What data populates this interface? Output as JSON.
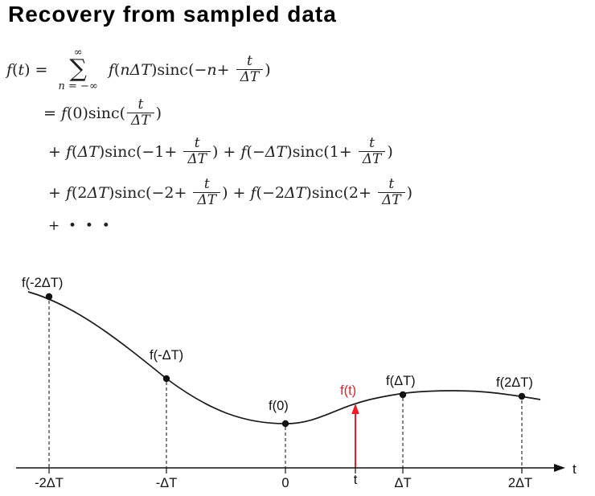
{
  "title": "Recovery from sampled data",
  "colors": {
    "highlight_red": "#ed1c24",
    "ink": "#111111"
  },
  "equations": {
    "lines": [
      {
        "plain": "f(t) = Σ_{n=−∞}^{∞} f(nΔT) sinc(−n + t/ΔT)",
        "tokens": [
          {
            "k": "var",
            "v": "f"
          },
          {
            "k": "txt",
            "v": "("
          },
          {
            "k": "var",
            "v": "t"
          },
          {
            "k": "txt",
            "v": ") = "
          },
          {
            "k": "sum",
            "top": "∞",
            "bot": "n = −∞"
          },
          {
            "k": "txt",
            "v": " "
          },
          {
            "k": "var",
            "v": "f"
          },
          {
            "k": "txt",
            "v": "("
          },
          {
            "k": "var",
            "v": "nΔT"
          },
          {
            "k": "txt",
            "v": ")sinc(−"
          },
          {
            "k": "var",
            "v": "n"
          },
          {
            "k": "txt",
            "v": "+ "
          },
          {
            "k": "frac",
            "num": "t",
            "den": "ΔT"
          },
          {
            "k": "txt",
            "v": ")"
          }
        ]
      },
      {
        "plain": "= f(0) sinc(t/ΔT)",
        "tokens": [
          {
            "k": "txt",
            "v": "= "
          },
          {
            "k": "var",
            "v": "f"
          },
          {
            "k": "txt",
            "v": "(0)sinc("
          },
          {
            "k": "frac",
            "num": "t",
            "den": "ΔT"
          },
          {
            "k": "txt",
            "v": ")"
          }
        ]
      },
      {
        "plain": "+ f(ΔT) sinc(−1 + t/ΔT) + f(−ΔT) sinc(1 + t/ΔT)",
        "tokens": [
          {
            "k": "txt",
            "v": "+ "
          },
          {
            "k": "var",
            "v": "f"
          },
          {
            "k": "txt",
            "v": "("
          },
          {
            "k": "var",
            "v": "ΔT"
          },
          {
            "k": "txt",
            "v": ")sinc(−1+ "
          },
          {
            "k": "frac",
            "num": "t",
            "den": "ΔT"
          },
          {
            "k": "txt",
            "v": ") + "
          },
          {
            "k": "var",
            "v": "f"
          },
          {
            "k": "txt",
            "v": "(−"
          },
          {
            "k": "var",
            "v": "ΔT"
          },
          {
            "k": "txt",
            "v": ")sinc(1+ "
          },
          {
            "k": "frac",
            "num": "t",
            "den": "ΔT"
          },
          {
            "k": "txt",
            "v": ")"
          }
        ]
      },
      {
        "plain": "+ f(2ΔT) sinc(−2 + t/ΔT) + f(−2ΔT) sinc(2 + t/ΔT)",
        "tokens": [
          {
            "k": "txt",
            "v": "+ "
          },
          {
            "k": "var",
            "v": "f"
          },
          {
            "k": "txt",
            "v": "(2"
          },
          {
            "k": "var",
            "v": "ΔT"
          },
          {
            "k": "txt",
            "v": ")sinc(−2+ "
          },
          {
            "k": "frac",
            "num": "t",
            "den": "ΔT"
          },
          {
            "k": "txt",
            "v": ") + "
          },
          {
            "k": "var",
            "v": "f"
          },
          {
            "k": "txt",
            "v": "(−2"
          },
          {
            "k": "var",
            "v": "ΔT"
          },
          {
            "k": "txt",
            "v": ")sinc(2+ "
          },
          {
            "k": "frac",
            "num": "t",
            "den": "ΔT"
          },
          {
            "k": "txt",
            "v": ")"
          }
        ]
      },
      {
        "plain": "+ ···",
        "tokens": [
          {
            "k": "txt",
            "v": "+  •  •  •"
          }
        ]
      }
    ]
  },
  "diagram": {
    "point_labels": {
      "m2": "f(-2ΔT)",
      "m1": "f(-ΔT)",
      "zero": "f(0)",
      "t": "f(t)",
      "p1": "f(ΔT)",
      "p2": "f(2ΔT)"
    },
    "axis_tick_labels": {
      "m2": "-2ΔT",
      "m1": "-ΔT",
      "zero": "0",
      "t": "t",
      "p1": "ΔT",
      "p2": "2ΔT"
    },
    "axis_label": "t",
    "sample_points": [
      "-2ΔT",
      "-ΔT",
      "0",
      "ΔT",
      "2ΔT"
    ],
    "highlighted_point": "t"
  }
}
